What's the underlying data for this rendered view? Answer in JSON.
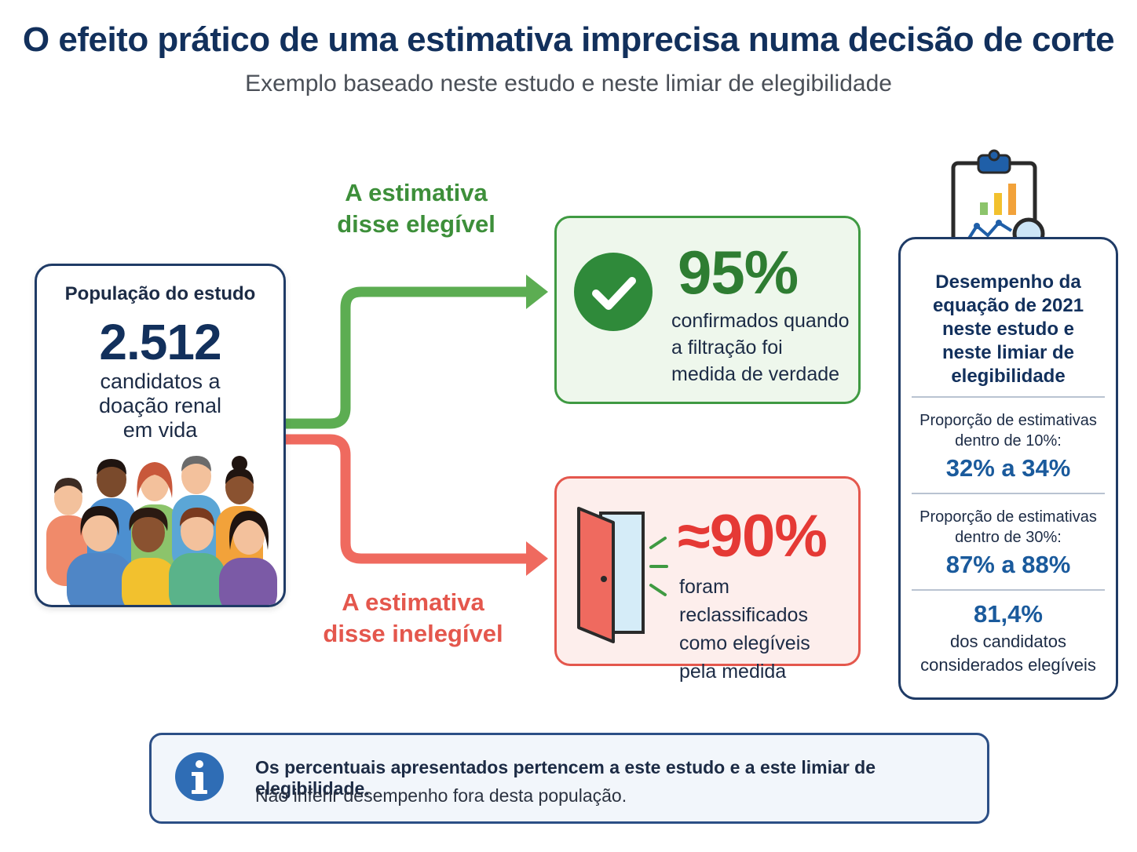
{
  "title": "O efeito prático de uma estimativa imprecisa numa decisão de corte",
  "subtitle": "Exemplo baseado neste estudo e neste limiar de elegibilidade",
  "population": {
    "label": "População do estudo",
    "number": "2.512",
    "desc_lines": [
      "candidatos a",
      "doação renal",
      "em vida"
    ]
  },
  "branch_eligible": {
    "label_lines": [
      "A estimativa",
      "disse elegível"
    ],
    "percent": "95%",
    "desc_lines": [
      "confirmados quando",
      "a filtração foi",
      "medida de verdade"
    ],
    "color": "#3f9a42",
    "icon": "check-circle-icon"
  },
  "branch_ineligible": {
    "label_lines": [
      "A estimativa",
      "disse inelegível"
    ],
    "percent": "≈90%",
    "desc_lines": [
      "foram reclassificados",
      "como elegíveis",
      "pela medida"
    ],
    "color": "#e4574d",
    "icon": "open-door-icon"
  },
  "performance": {
    "icon": "clipboard-chart-icon",
    "title_lines": [
      "Desempenho da",
      "equação de 2021",
      "neste estudo e",
      "neste limiar de",
      "elegibilidade"
    ],
    "metric1": {
      "label_lines": [
        "Proporção de estimativas",
        "dentro de 10%:"
      ],
      "value": "32% a 34%"
    },
    "metric2": {
      "label_lines": [
        "Proporção de estimativas",
        "dentro de 30%:"
      ],
      "value": "87% a 88%"
    },
    "metric3": {
      "value": "81,4%",
      "label_lines": [
        "dos candidatos",
        "considerados elegíveis"
      ]
    }
  },
  "note": {
    "icon": "info-icon",
    "bold": "Os percentuais apresentados pertencem a este estudo e a este limiar de elegibilidade.",
    "text": "Não inferir desempenho fora desta população."
  },
  "colors": {
    "navy": "#12305c",
    "green": "#3f9a42",
    "red": "#e4574d",
    "blue_value": "#1a5a9c"
  }
}
